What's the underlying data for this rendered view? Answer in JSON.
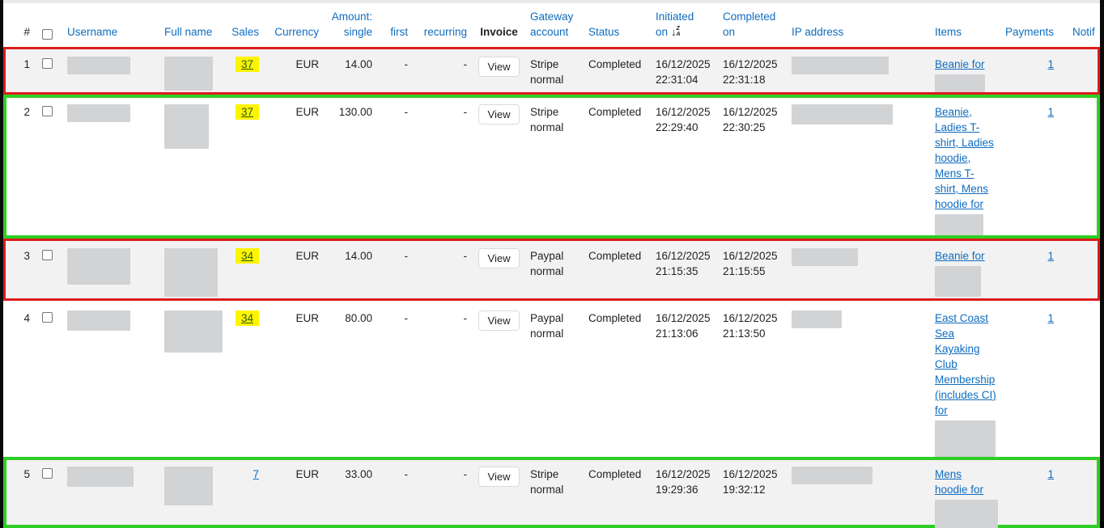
{
  "colors": {
    "link_blue": "#0f6cbf",
    "text_dark": "#1d2125",
    "row_stripe_gray": "#f2f2f2",
    "redaction_gray": "#d1d3d5",
    "annotation_red": "#dd1c1c",
    "annotation_green": "#2ece24",
    "highlight_yellow": "#fdf402",
    "highlight_text_green": "#2f5a0e"
  },
  "header": {
    "num": "#",
    "username": "Username",
    "fullname": "Full name",
    "sales": "Sales",
    "currency": "Currency",
    "amount_line1": "Amount:",
    "amount_line2": "single",
    "first": "first",
    "recurring": "recurring",
    "invoice": "Invoice",
    "gateway_line1": "Gateway",
    "gateway_line2": "account",
    "status": "Status",
    "initiated_line1": "Initiated",
    "initiated_line2": "on",
    "sort_icon": "sort-descending-z-a",
    "completed_line1": "Completed",
    "completed_line2": "on",
    "ip": "IP address",
    "items": "Items",
    "payments": "Payments",
    "notifications": "Notif"
  },
  "table": {
    "rows": [
      {
        "num": "1",
        "sales": "37",
        "sales_highlight": true,
        "currency": "EUR",
        "amount_single": "14.00",
        "first": "-",
        "recurring": "-",
        "invoice_button": "View",
        "gateway": "Stripe normal",
        "status": "Completed",
        "initiated_date": "16/12/2025",
        "initiated_time": "22:31:04",
        "completed_date": "16/12/2025",
        "completed_time": "22:31:18",
        "items": "Beanie for",
        "payments": "1",
        "annotation": "red",
        "zebra": "gray"
      },
      {
        "num": "2",
        "sales": "37",
        "sales_highlight": true,
        "currency": "EUR",
        "amount_single": "130.00",
        "first": "-",
        "recurring": "-",
        "invoice_button": "View",
        "gateway": "Stripe normal",
        "status": "Completed",
        "initiated_date": "16/12/2025",
        "initiated_time": "22:29:40",
        "completed_date": "16/12/2025",
        "completed_time": "22:30:25",
        "items": "Beanie, Ladies T-shirt, Ladies hoodie, Mens T-shirt, Mens hoodie for",
        "payments": "1",
        "annotation": "green",
        "zebra": "white"
      },
      {
        "num": "3",
        "sales": "34",
        "sales_highlight": true,
        "currency": "EUR",
        "amount_single": "14.00",
        "first": "-",
        "recurring": "-",
        "invoice_button": "View",
        "gateway": "Paypal normal",
        "status": "Completed",
        "initiated_date": "16/12/2025",
        "initiated_time": "21:15:35",
        "completed_date": "16/12/2025",
        "completed_time": "21:15:55",
        "items": "Beanie for",
        "payments": "1",
        "annotation": "red",
        "zebra": "gray"
      },
      {
        "num": "4",
        "sales": "34",
        "sales_highlight": true,
        "currency": "EUR",
        "amount_single": "80.00",
        "first": "-",
        "recurring": "-",
        "invoice_button": "View",
        "gateway": "Paypal normal",
        "status": "Completed",
        "initiated_date": "16/12/2025",
        "initiated_time": "21:13:06",
        "completed_date": "16/12/2025",
        "completed_time": "21:13:50",
        "items": "East Coast Sea Kayaking Club Membership (includes CI) for",
        "payments": "1",
        "annotation": "none",
        "zebra": "white"
      },
      {
        "num": "5",
        "sales": "7",
        "sales_highlight": false,
        "currency": "EUR",
        "amount_single": "33.00",
        "first": "-",
        "recurring": "-",
        "invoice_button": "View",
        "gateway": "Stripe normal",
        "status": "Completed",
        "initiated_date": "16/12/2025",
        "initiated_time": "19:29:36",
        "completed_date": "16/12/2025",
        "completed_time": "19:32:12",
        "items": "Mens hoodie for",
        "payments": "1",
        "annotation": "green",
        "zebra": "gray"
      }
    ]
  }
}
